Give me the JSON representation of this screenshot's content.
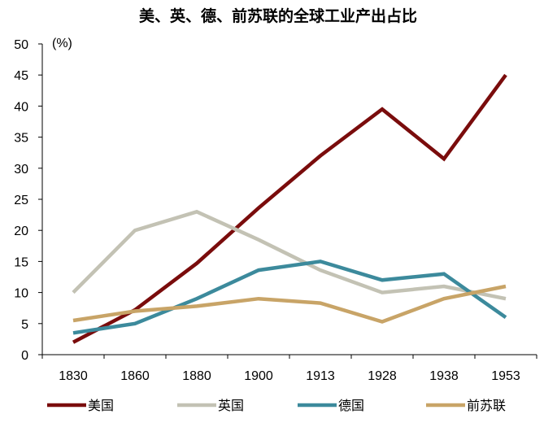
{
  "chart_data": {
    "type": "line",
    "title": "美、英、德、前苏联的全球工业产出占比",
    "unit_label": "(%)",
    "categories": [
      "1830",
      "1860",
      "1880",
      "1900",
      "1913",
      "1928",
      "1938",
      "1953"
    ],
    "ylim": [
      0,
      50
    ],
    "yticks": [
      0,
      5,
      10,
      15,
      20,
      25,
      30,
      35,
      40,
      45,
      50
    ],
    "grid": false,
    "legend_position": "bottom",
    "series": [
      {
        "name": "美国",
        "color": "#7a0c0c",
        "values": [
          2,
          7.2,
          14.7,
          23.6,
          32,
          39.5,
          31.5,
          45
        ]
      },
      {
        "name": "英国",
        "color": "#c3c2b4",
        "values": [
          10,
          20,
          23,
          18.5,
          13.6,
          10,
          11,
          9
        ]
      },
      {
        "name": "德国",
        "color": "#3c8a9c",
        "values": [
          3.5,
          5,
          9,
          13.6,
          15,
          12,
          13,
          6
        ]
      },
      {
        "name": "前苏联",
        "color": "#c8a467",
        "values": [
          5.5,
          7,
          7.8,
          9,
          8.3,
          5.3,
          9,
          11
        ]
      }
    ]
  }
}
